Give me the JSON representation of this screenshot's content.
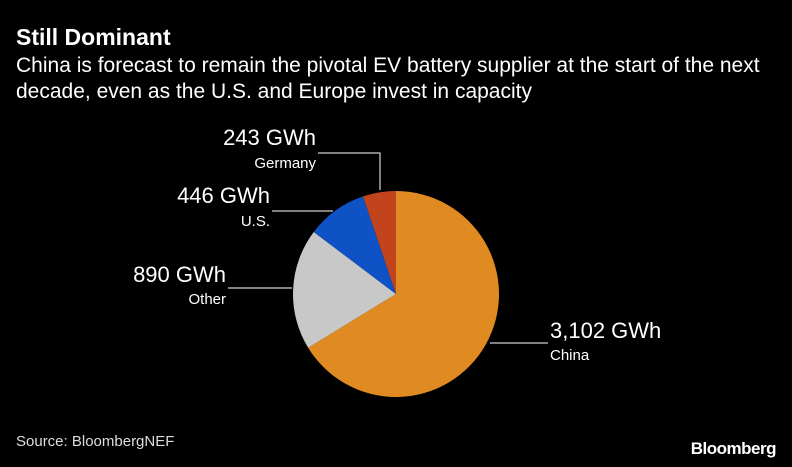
{
  "chart_data": {
    "type": "pie",
    "title": "Still Dominant",
    "subtitle": "China is forecast to remain the pivotal EV battery supplier at the start of the next decade, even as the U.S. and Europe invest in capacity",
    "categories": [
      "China",
      "Other",
      "U.S.",
      "Germany"
    ],
    "values": [
      3102,
      890,
      446,
      243
    ],
    "value_labels": [
      "3,102 GWh",
      "890 GWh",
      "446 GWh",
      "243 GWh"
    ],
    "colors": [
      "#e08b22",
      "#c8c8c8",
      "#0f52c6",
      "#c1441d"
    ],
    "source": "Source: BloombergNEF",
    "brand": "Bloomberg"
  }
}
